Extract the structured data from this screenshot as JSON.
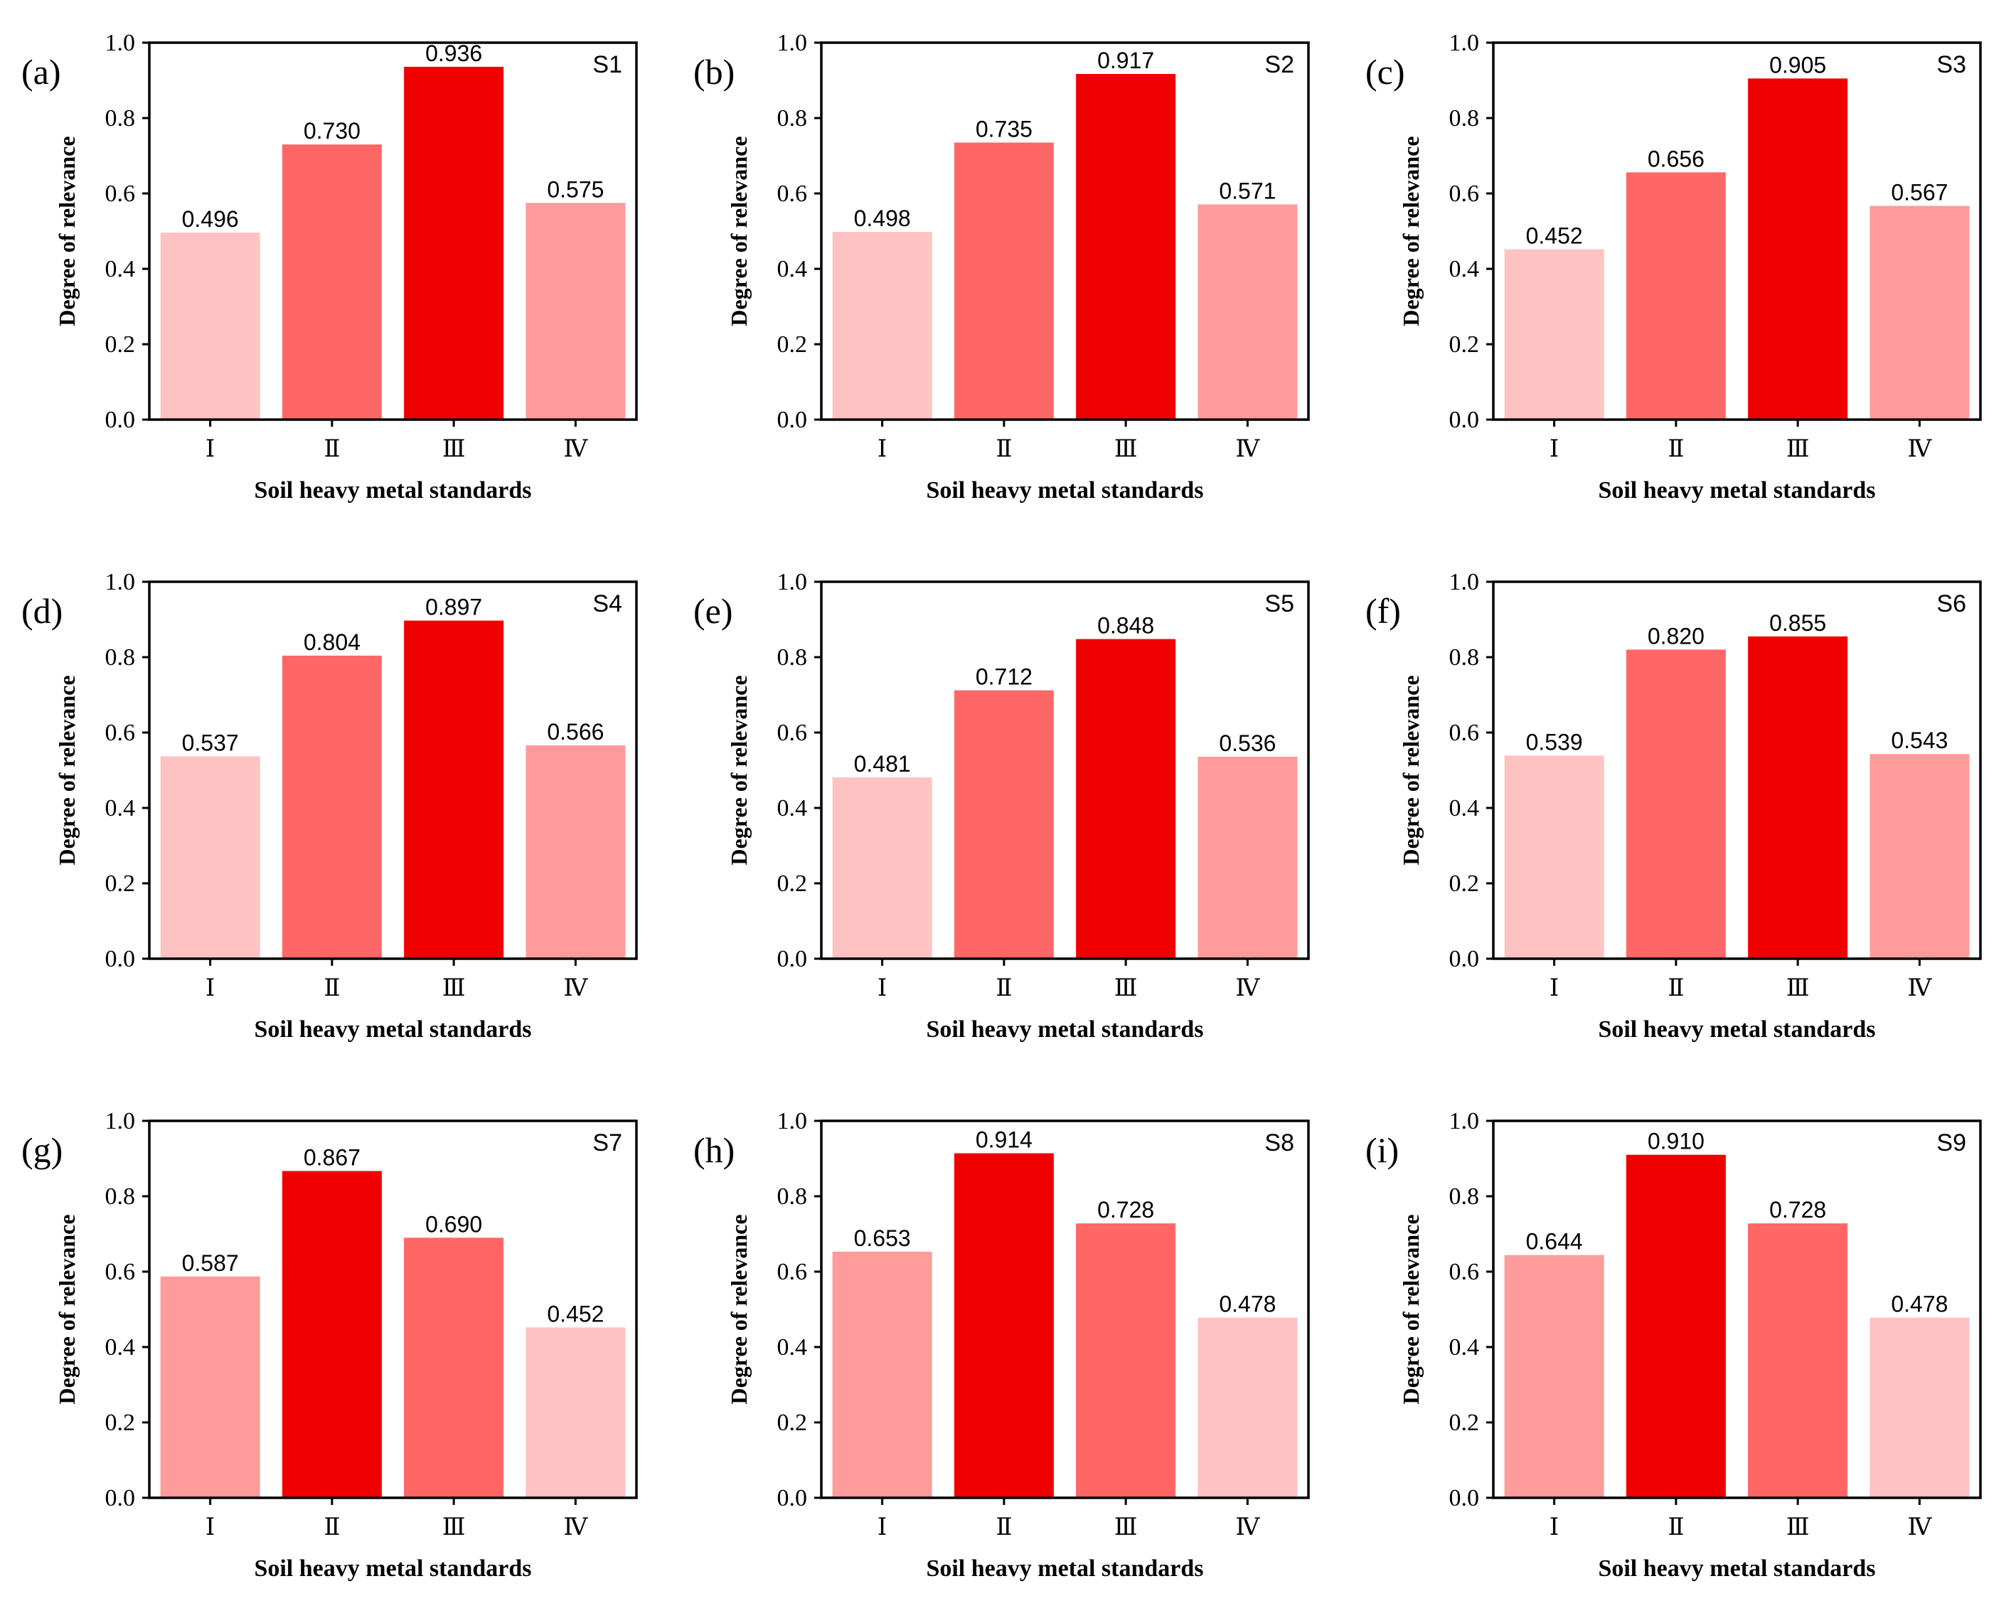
{
  "figure": {
    "ylabel": "Degree of relevance",
    "xlabel": "Soil heavy metal standards",
    "ylim": [
      0,
      1.0
    ],
    "yticks": [
      "0.0",
      "0.2",
      "0.4",
      "0.6",
      "0.8",
      "1.0"
    ],
    "colors": {
      "rank1": "#f00000",
      "rank2": "#ff6666",
      "rank3": "#ff9b9b",
      "rank4": "#ffc2c2",
      "axis": "#000000"
    }
  },
  "chart_data": [
    {
      "type": "bar",
      "panel": "(a)",
      "title": "S1",
      "categories": [
        "Ⅰ",
        "Ⅱ",
        "Ⅲ",
        "Ⅳ"
      ],
      "values": [
        0.496,
        0.73,
        0.936,
        0.575
      ],
      "labels": [
        "0.496",
        "0.730",
        "0.936",
        "0.575"
      ],
      "xlabel": "Soil heavy metal standards",
      "ylabel": "Degree of relevance",
      "ylim": [
        0,
        1.0
      ]
    },
    {
      "type": "bar",
      "panel": "(b)",
      "title": "S2",
      "categories": [
        "Ⅰ",
        "Ⅱ",
        "Ⅲ",
        "Ⅳ"
      ],
      "values": [
        0.498,
        0.735,
        0.917,
        0.571
      ],
      "labels": [
        "0.498",
        "0.735",
        "0.917",
        "0.571"
      ],
      "xlabel": "Soil heavy metal standards",
      "ylabel": "Degree of relevance",
      "ylim": [
        0,
        1.0
      ]
    },
    {
      "type": "bar",
      "panel": "(c)",
      "title": "S3",
      "categories": [
        "Ⅰ",
        "Ⅱ",
        "Ⅲ",
        "Ⅳ"
      ],
      "values": [
        0.452,
        0.656,
        0.905,
        0.567
      ],
      "labels": [
        "0.452",
        "0.656",
        "0.905",
        "0.567"
      ],
      "xlabel": "Soil heavy metal standards",
      "ylabel": "Degree of relevance",
      "ylim": [
        0,
        1.0
      ]
    },
    {
      "type": "bar",
      "panel": "(d)",
      "title": "S4",
      "categories": [
        "Ⅰ",
        "Ⅱ",
        "Ⅲ",
        "Ⅳ"
      ],
      "values": [
        0.537,
        0.804,
        0.897,
        0.566
      ],
      "labels": [
        "0.537",
        "0.804",
        "0.897",
        "0.566"
      ],
      "xlabel": "Soil heavy metal standards",
      "ylabel": "Degree of relevance",
      "ylim": [
        0,
        1.0
      ]
    },
    {
      "type": "bar",
      "panel": "(e)",
      "title": "S5",
      "categories": [
        "Ⅰ",
        "Ⅱ",
        "Ⅲ",
        "Ⅳ"
      ],
      "values": [
        0.481,
        0.712,
        0.848,
        0.536
      ],
      "labels": [
        "0.481",
        "0.712",
        "0.848",
        "0.536"
      ],
      "xlabel": "Soil heavy metal standards",
      "ylabel": "Degree of relevance",
      "ylim": [
        0,
        1.0
      ]
    },
    {
      "type": "bar",
      "panel": "(f)",
      "title": "S6",
      "categories": [
        "Ⅰ",
        "Ⅱ",
        "Ⅲ",
        "Ⅳ"
      ],
      "values": [
        0.539,
        0.82,
        0.855,
        0.543
      ],
      "labels": [
        "0.539",
        "0.820",
        "0.855",
        "0.543"
      ],
      "xlabel": "Soil heavy metal standards",
      "ylabel": "Degree of relevance",
      "ylim": [
        0,
        1.0
      ]
    },
    {
      "type": "bar",
      "panel": "(g)",
      "title": "S7",
      "categories": [
        "Ⅰ",
        "Ⅱ",
        "Ⅲ",
        "Ⅳ"
      ],
      "values": [
        0.587,
        0.867,
        0.69,
        0.452
      ],
      "labels": [
        "0.587",
        "0.867",
        "0.690",
        "0.452"
      ],
      "xlabel": "Soil heavy metal standards",
      "ylabel": "Degree of relevance",
      "ylim": [
        0,
        1.0
      ]
    },
    {
      "type": "bar",
      "panel": "(h)",
      "title": "S8",
      "categories": [
        "Ⅰ",
        "Ⅱ",
        "Ⅲ",
        "Ⅳ"
      ],
      "values": [
        0.653,
        0.914,
        0.728,
        0.478
      ],
      "labels": [
        "0.653",
        "0.914",
        "0.728",
        "0.478"
      ],
      "xlabel": "Soil heavy metal standards",
      "ylabel": "Degree of relevance",
      "ylim": [
        0,
        1.0
      ]
    },
    {
      "type": "bar",
      "panel": "(i)",
      "title": "S9",
      "categories": [
        "Ⅰ",
        "Ⅱ",
        "Ⅲ",
        "Ⅳ"
      ],
      "values": [
        0.644,
        0.91,
        0.728,
        0.478
      ],
      "labels": [
        "0.644",
        "0.910",
        "0.728",
        "0.478"
      ],
      "xlabel": "Soil heavy metal standards",
      "ylabel": "Degree of relevance",
      "ylim": [
        0,
        1.0
      ]
    }
  ]
}
